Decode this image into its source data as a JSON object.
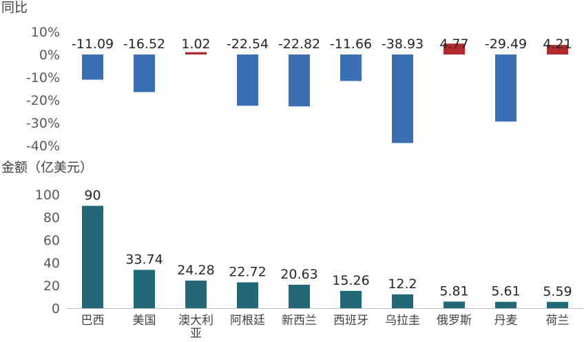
{
  "chart_data": [
    {
      "type": "bar",
      "ylabel": "同比",
      "categories": [
        "巴西",
        "美国",
        "澳大利亚",
        "阿根廷",
        "新西兰",
        "西班牙",
        "乌拉圭",
        "俄罗斯",
        "丹麦",
        "荷兰"
      ],
      "values": [
        -11.09,
        -16.52,
        1.02,
        -22.54,
        -22.82,
        -11.66,
        -38.93,
        4.77,
        -29.49,
        4.21
      ],
      "data_labels": [
        "-11.09",
        "-16.52",
        "1.02",
        "-22.54",
        "-22.82",
        "-11.66",
        "-38.93",
        "4.77",
        "-29.49",
        "4.21"
      ],
      "yticks": [
        "10%",
        "0%",
        "-10%",
        "-20%",
        "-30%",
        "-40%"
      ],
      "ylim": [
        -40,
        10
      ],
      "unit": "%",
      "grid": false,
      "colors": {
        "negative": "#3a6fb4",
        "positive": "#b22a2a"
      }
    },
    {
      "type": "bar",
      "ylabel": "金额（亿美元）",
      "categories": [
        "巴西",
        "美国",
        "澳大利亚",
        "阿根廷",
        "新西兰",
        "西班牙",
        "乌拉圭",
        "俄罗斯",
        "丹麦",
        "荷兰"
      ],
      "category_display": [
        [
          "巴西"
        ],
        [
          "美国"
        ],
        [
          "澳大利",
          "亚"
        ],
        [
          "阿根廷"
        ],
        [
          "新西兰"
        ],
        [
          "西班牙"
        ],
        [
          "乌拉圭"
        ],
        [
          "俄罗斯"
        ],
        [
          "丹麦"
        ],
        [
          "荷兰"
        ]
      ],
      "values": [
        90,
        33.74,
        24.28,
        22.72,
        20.63,
        15.26,
        12.2,
        5.81,
        5.61,
        5.59
      ],
      "data_labels": [
        "90",
        "33.74",
        "24.28",
        "22.72",
        "20.63",
        "15.26",
        "12.2",
        "5.81",
        "5.61",
        "5.59"
      ],
      "yticks": [
        "100",
        "80",
        "60",
        "40",
        "20",
        "0"
      ],
      "ylim": [
        0,
        100
      ],
      "grid": false,
      "colors": {
        "bar": "#226878",
        "axis": "#bfbfbf"
      }
    }
  ]
}
